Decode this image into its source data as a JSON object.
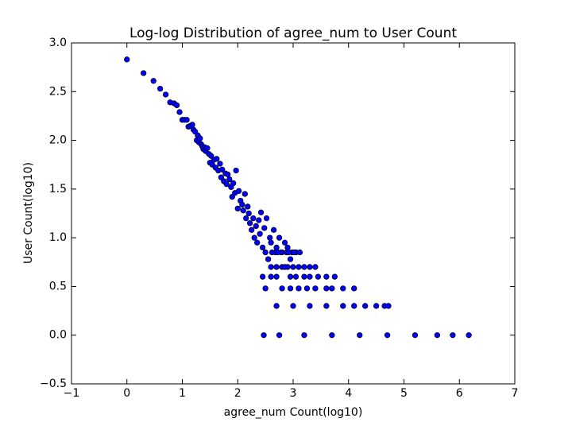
{
  "chart_data": {
    "type": "scatter",
    "title": "Log-log Distribution of agree_num to User Count",
    "x_label": "agree_num Count(log10)",
    "y_label": "User Count(log10)",
    "color": "#0000ff",
    "edge_color": "#000000",
    "xlim": [
      -1,
      7
    ],
    "ylim": [
      -0.5,
      3.0
    ],
    "xticks": [
      {
        "value": -1,
        "label": "−1"
      },
      0,
      1,
      2,
      3,
      4,
      5,
      6,
      7
    ],
    "yticks": [
      {
        "value": -0.5,
        "label": "−0.5"
      },
      {
        "value": 0,
        "label": "0.0"
      },
      0.5,
      {
        "value": 1,
        "label": "1.0"
      },
      1.5,
      {
        "value": 2,
        "label": "2.0"
      },
      2.5,
      {
        "value": 3,
        "label": "3.0"
      }
    ],
    "x": [
      0,
      0.3,
      0.48,
      0.6,
      0.7,
      0.78,
      0.85,
      0.9,
      0.95,
      1.0,
      1.04,
      1.08,
      1.11,
      1.15,
      1.18,
      1.2,
      1.23,
      1.26,
      1.28,
      1.3,
      1.32,
      1.34,
      1.36,
      1.38,
      1.4,
      1.42,
      1.45,
      1.48,
      1.5,
      1.52,
      1.54,
      1.57,
      1.6,
      1.62,
      1.65,
      1.68,
      1.7,
      1.72,
      1.75,
      1.78,
      1.8,
      1.82,
      1.85,
      1.88,
      1.9,
      1.92,
      1.95,
      1.97,
      2.0,
      2.02,
      2.05,
      2.08,
      2.1,
      2.13,
      2.15,
      2.18,
      2.2,
      2.22,
      2.25,
      2.28,
      2.3,
      2.33,
      2.35,
      2.38,
      2.4,
      2.42,
      2.45,
      2.48,
      2.5,
      2.52,
      2.55,
      2.58,
      2.6,
      2.65,
      2.7,
      2.75,
      2.8,
      2.85,
      2.9,
      2.95,
      2.62,
      2.68,
      2.78,
      2.88,
      2.98,
      3.05,
      3.12,
      2.72,
      2.92,
      3.02,
      2.6,
      2.7,
      2.8,
      2.9,
      3.0,
      3.1,
      3.2,
      3.3,
      3.4,
      2.85,
      2.45,
      2.7,
      2.95,
      3.2,
      3.45,
      3.6,
      3.75,
      3.3,
      3.05,
      2.6,
      2.5,
      2.8,
      3.1,
      3.4,
      3.7,
      3.9,
      4.1,
      3.6,
      3.25,
      2.95,
      2.7,
      3.0,
      3.3,
      3.6,
      3.9,
      4.1,
      4.3,
      4.5,
      4.65,
      4.72,
      2.47,
      2.75,
      3.2,
      3.7,
      4.2,
      4.7,
      5.2,
      5.6,
      5.88,
      6.17
    ],
    "values": [
      2.83,
      2.69,
      2.61,
      2.53,
      2.47,
      2.39,
      2.38,
      2.36,
      2.29,
      2.21,
      2.21,
      2.21,
      2.14,
      2.15,
      2.16,
      2.11,
      2.09,
      2.0,
      2.05,
      1.98,
      2.02,
      1.96,
      1.94,
      1.91,
      1.93,
      1.89,
      1.92,
      1.86,
      1.77,
      1.84,
      1.75,
      1.8,
      1.72,
      1.81,
      1.69,
      1.76,
      1.62,
      1.7,
      1.58,
      1.66,
      1.55,
      1.65,
      1.6,
      1.52,
      1.42,
      1.56,
      1.46,
      1.69,
      1.3,
      1.48,
      1.38,
      1.34,
      1.28,
      1.45,
      1.2,
      1.32,
      1.25,
      1.15,
      1.08,
      1.2,
      1.0,
      1.12,
      0.95,
      1.18,
      1.04,
      1.26,
      0.9,
      1.1,
      0.85,
      1.2,
      0.78,
      1.0,
      0.95,
      1.08,
      0.9,
      1.0,
      0.85,
      0.95,
      0.9,
      0.78,
      0.85,
      0.85,
      0.85,
      0.85,
      0.85,
      0.85,
      0.85,
      0.85,
      0.85,
      0.85,
      0.7,
      0.7,
      0.7,
      0.7,
      0.7,
      0.7,
      0.7,
      0.7,
      0.7,
      0.7,
      0.6,
      0.6,
      0.6,
      0.6,
      0.6,
      0.6,
      0.6,
      0.6,
      0.6,
      0.6,
      0.48,
      0.48,
      0.48,
      0.48,
      0.48,
      0.48,
      0.48,
      0.48,
      0.48,
      0.48,
      0.3,
      0.3,
      0.3,
      0.3,
      0.3,
      0.3,
      0.3,
      0.3,
      0.3,
      0.3,
      0,
      0,
      0,
      0,
      0,
      0,
      0,
      0,
      0,
      0
    ]
  }
}
